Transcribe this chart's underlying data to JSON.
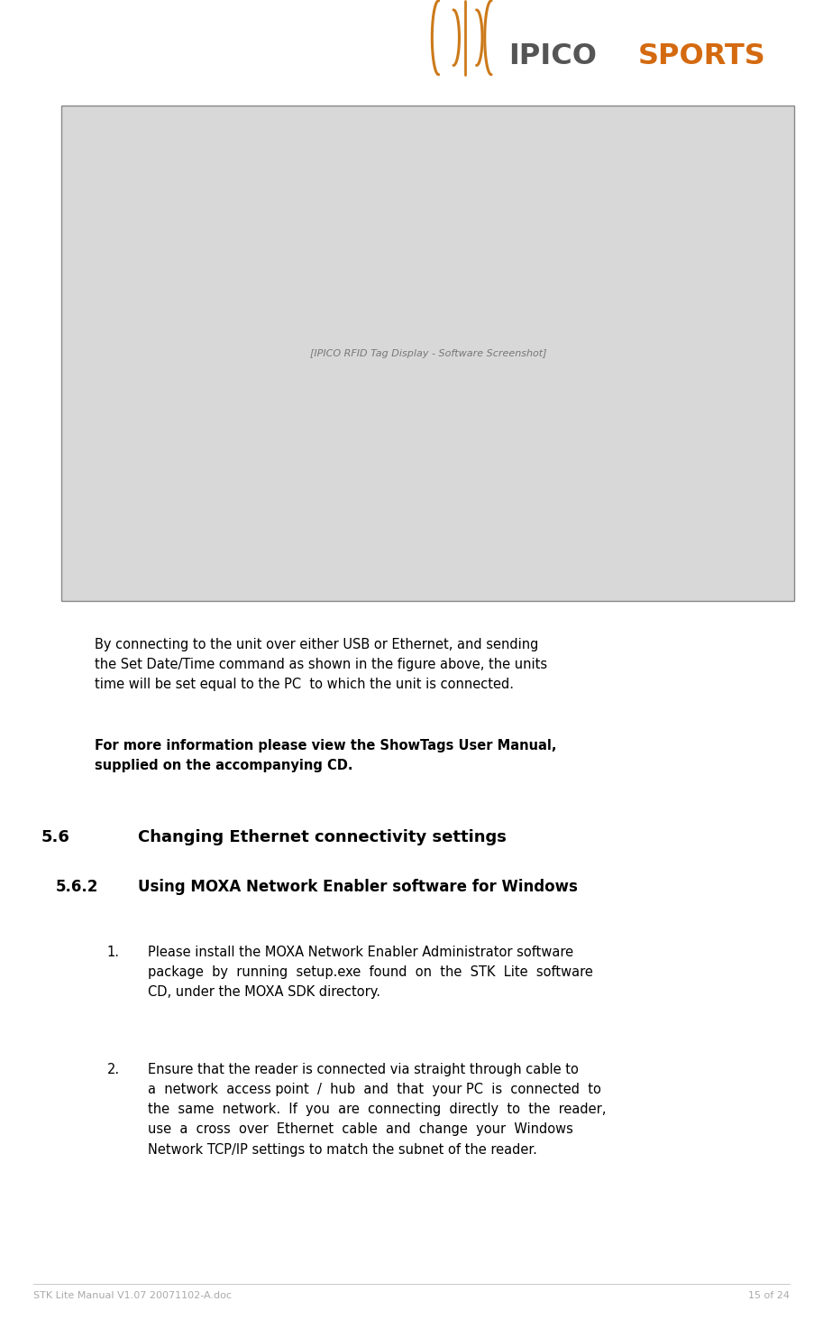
{
  "page_bg": "#ffffff",
  "logo_text_ipico": "IPICO",
  "logo_text_sports": "SPORTS",
  "logo_color_ipico": "#555555",
  "logo_color_sports": "#d46a10",
  "logo_symbol_color": "#cc7a1a",
  "para1": "By connecting to the unit over either USB or Ethernet, and sending\nthe Set Date/Time command as shown in the figure above, the units\ntime will be set equal to the PC  to which the unit is connected.",
  "para1_bold": "For more information please view the ShowTags User Manual,\nsupplied on the accompanying CD.",
  "heading1_num": "5.6",
  "heading1_text": "Changing Ethernet connectivity settings",
  "heading2_num": "5.6.2",
  "heading2_text": "Using MOXA Network Enabler software for Windows",
  "item1_num": "1.",
  "item1_text": "Please install the MOXA Network Enabler Administrator software\npackage  by  running  setup.exe  found  on  the  STK  Lite  software\nCD, under the MOXA SDK directory.",
  "item2_num": "2.",
  "item2_text": "Ensure that the reader is connected via straight through cable to\na  network  access point  /  hub  and  that  your PC  is  connected  to\nthe  same  network.  If  you  are  connecting  directly  to  the  reader,\nuse  a  cross  over  Ethernet  cable  and  change  your  Windows\nNetwork TCP/IP settings to match the subnet of the reader.",
  "footer_left": "STK Lite Manual V1.07 20071102-A.doc",
  "footer_right": "15 of 24",
  "footer_color": "#aaaaaa",
  "footer_line_color": "#cccccc",
  "font_size_body": 10.5,
  "font_size_heading1": 13,
  "font_size_heading2": 12,
  "font_size_footer": 8,
  "text_color": "#000000"
}
